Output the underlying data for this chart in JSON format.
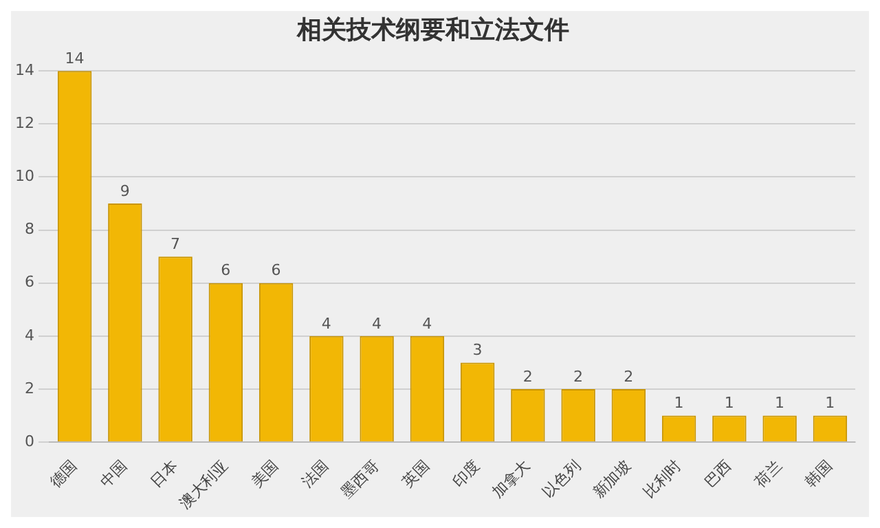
{
  "chart_data": {
    "type": "bar",
    "title": "相关技术纲要和立法文件",
    "categories": [
      "德国",
      "中国",
      "日本",
      "澳大利亚",
      "美国",
      "法国",
      "墨西哥",
      "英国",
      "印度",
      "加拿大",
      "以色列",
      "新加坡",
      "比利时",
      "巴西",
      "荷兰",
      "韩国"
    ],
    "values": [
      14,
      9,
      7,
      6,
      6,
      4,
      4,
      4,
      3,
      2,
      2,
      2,
      1,
      1,
      1,
      1
    ],
    "color": "#f2b705",
    "ylim": [
      0,
      14
    ],
    "yticks": [
      0,
      2,
      4,
      6,
      8,
      10,
      12,
      14
    ],
    "grid": "y",
    "data_labels": true
  }
}
